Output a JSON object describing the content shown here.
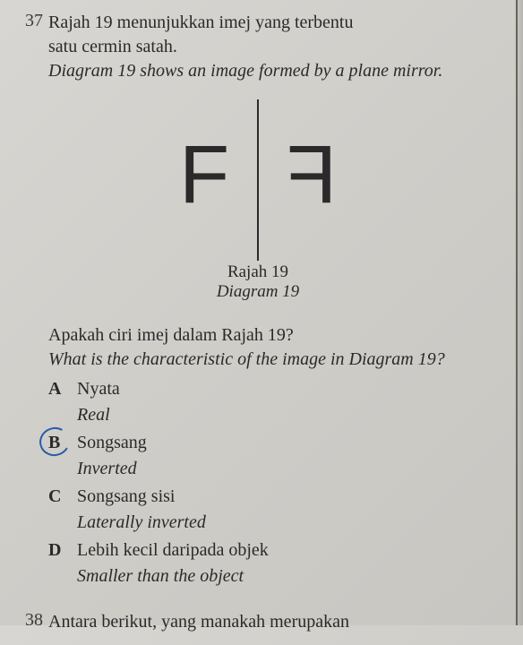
{
  "q37": {
    "number": "37",
    "line1": "Rajah 19 menunjukkan imej yang terbentu",
    "line2": "satu cermin satah.",
    "line3_italic": "Diagram 19 shows an image formed by a plane mirror.",
    "diagram": {
      "letter": "F",
      "caption_ms": "Rajah 19",
      "caption_en": "Diagram 19",
      "letter_color": "#2a2a2a",
      "mirror_color": "#2a2a2a"
    },
    "sub_ms": "Apakah ciri imej dalam Rajah 19?",
    "sub_en": "What is the characteristic of the image in Diagram 19?",
    "options": [
      {
        "letter": "A",
        "ms": "Nyata",
        "en": "Real"
      },
      {
        "letter": "B",
        "ms": "Songsang",
        "en": "Inverted"
      },
      {
        "letter": "C",
        "ms": "Songsang sisi",
        "en": "Laterally inverted"
      },
      {
        "letter": "D",
        "ms": "Lebih kecil daripada objek",
        "en": "Smaller than the object"
      }
    ],
    "circled_index": 1,
    "circle_color": "#2b5aa8"
  },
  "q38": {
    "number": "38",
    "line1": "Antara berikut, yang manakah merupakan"
  },
  "style": {
    "bg_color": "#d4d2cd",
    "text_color": "#2a2a2a",
    "font_body": "Georgia, 'Times New Roman', serif",
    "font_diagram": "Arial, Helvetica, sans-serif"
  }
}
